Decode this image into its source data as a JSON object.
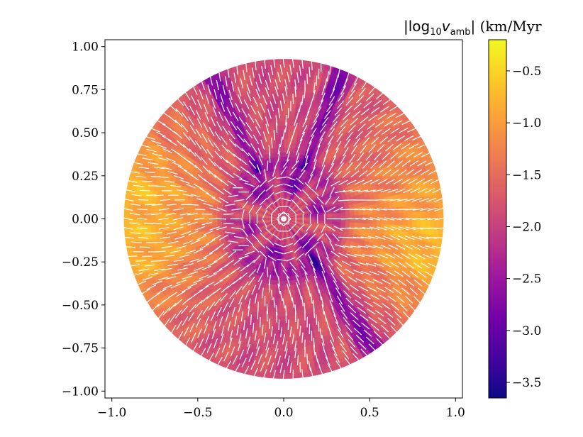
{
  "chart_data": {
    "type": "heatmap",
    "description_kind": "polar quiver field on colored disk",
    "xlim": [
      -1.04,
      1.04
    ],
    "ylim": [
      -1.04,
      1.04
    ],
    "x_ticks": [
      -1.0,
      -0.5,
      0.0,
      0.5,
      1.0
    ],
    "x_tick_labels": [
      "−1.0",
      "−0.5",
      "0.0",
      "0.5",
      "1.0"
    ],
    "y_ticks": [
      1.0,
      0.75,
      0.5,
      0.25,
      0.0,
      -0.25,
      -0.5,
      -0.75,
      -1.0
    ],
    "y_tick_labels": [
      "1.00",
      "0.75",
      "0.50",
      "0.25",
      "0.00",
      "−0.25",
      "−0.50",
      "−0.75",
      "−1.00"
    ],
    "disk_radius": 0.93,
    "colorbar": {
      "title_prefix": "|log",
      "title_sub10": "10",
      "title_var": "v",
      "title_subamb": "amb",
      "title_suffix": "| (km/Myr",
      "range": [
        -3.65,
        -0.2
      ],
      "ticks": [
        -0.5,
        -1.0,
        -1.5,
        -2.0,
        -2.5,
        -3.0,
        -3.5
      ],
      "tick_labels": [
        "−0.5",
        "−1.0",
        "−1.5",
        "−2.0",
        "−2.5",
        "−3.0",
        "−3.5"
      ],
      "colormap": "plasma",
      "colormap_stops": [
        "#0d0887",
        "#46039f",
        "#7201a8",
        "#9c179e",
        "#bd3786",
        "#d8576b",
        "#ed7953",
        "#fb9f3a",
        "#fdca26",
        "#f0f921"
      ]
    },
    "arrow_color": "#ffffff"
  }
}
